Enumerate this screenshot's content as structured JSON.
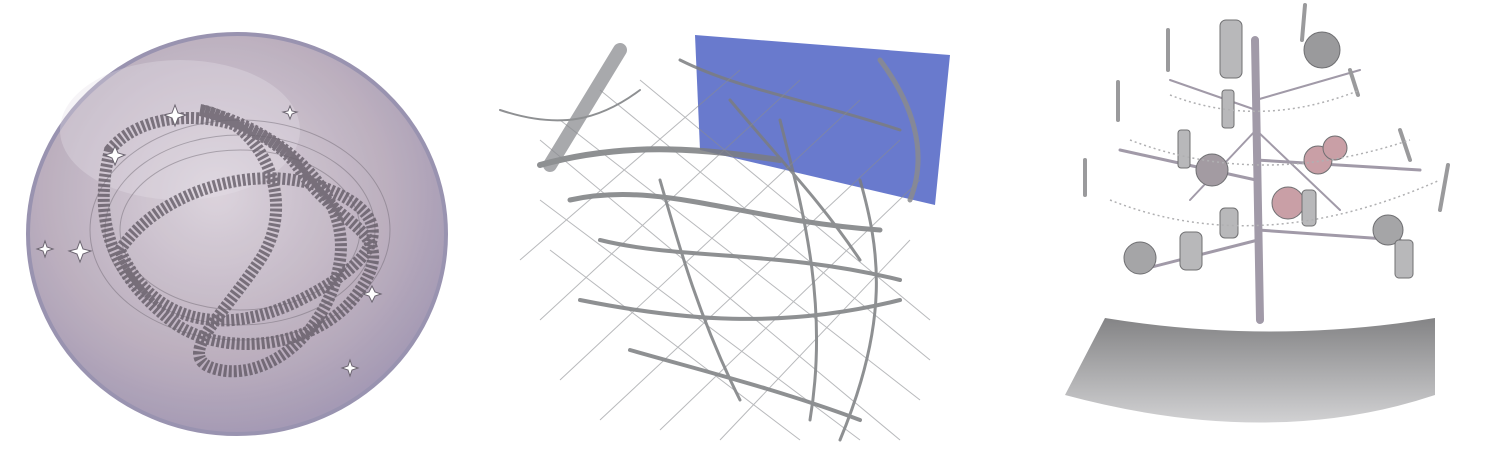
{
  "figure": {
    "panels": [
      {
        "id": "sphere",
        "description_icon": "sphere-knot-render"
      },
      {
        "id": "vessels",
        "description_icon": "vascular-network-render"
      },
      {
        "id": "tree",
        "description_icon": "ornament-tree-render"
      }
    ]
  },
  "colors": {
    "sphere_fill": "#b7a8b8",
    "sphere_edge": "#8f88a8",
    "knot_stroke": "#5d5560",
    "vessel_stroke": "#7b7d80",
    "vessel_block": "#4f63c4",
    "tree_trunk": "#a19aa8",
    "ornament_gray": "#9a9a9c",
    "ornament_pink": "#c99fa6",
    "base_gray": "#8c8c8e"
  }
}
